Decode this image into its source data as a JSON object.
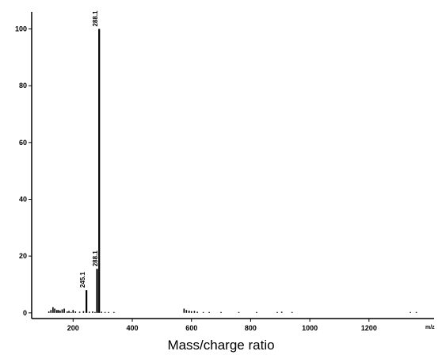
{
  "chart_data": {
    "type": "bar",
    "title": "",
    "xlabel": "Mass/charge ratio",
    "xunit": "m/z",
    "ylabel": "",
    "xlim": [
      60,
      1420
    ],
    "ylim": [
      -2,
      106
    ],
    "x_ticks": [
      200,
      400,
      600,
      800,
      1000,
      1200
    ],
    "y_ticks": [
      0,
      20,
      40,
      60,
      80,
      100
    ],
    "grid": false,
    "series": [
      {
        "x": [
          118,
          125,
          132,
          138,
          145,
          150,
          156,
          163,
          170,
          180,
          186,
          193,
          200,
          208,
          222,
          235,
          245.1,
          255,
          266,
          274,
          281,
          288.1,
          296,
          308,
          320,
          338,
          575,
          583,
          592,
          600,
          610,
          620,
          640,
          660,
          700,
          760,
          820,
          890,
          905,
          940,
          1340,
          1360
        ],
        "values": [
          0.5,
          1.0,
          2.0,
          1.5,
          1.0,
          1.0,
          0.8,
          1.2,
          1.5,
          0.5,
          0.7,
          0.3,
          1.0,
          0.5,
          0.4,
          0.6,
          8.0,
          0.4,
          0.5,
          0.3,
          15.5,
          100,
          0.4,
          0.3,
          0.3,
          0.3,
          1.5,
          1.0,
          0.8,
          0.6,
          0.7,
          0.4,
          0.3,
          0.3,
          0.3,
          0.3,
          0.3,
          0.3,
          0.4,
          0.3,
          0.3,
          0.3
        ]
      }
    ],
    "annotations": [
      {
        "x": 245.1,
        "y": 8.0,
        "text": "245.1"
      },
      {
        "x": 288.1,
        "y": 100,
        "text": "288.1"
      },
      {
        "x": 288.1,
        "y": 15.5,
        "text": "288.1"
      }
    ]
  }
}
